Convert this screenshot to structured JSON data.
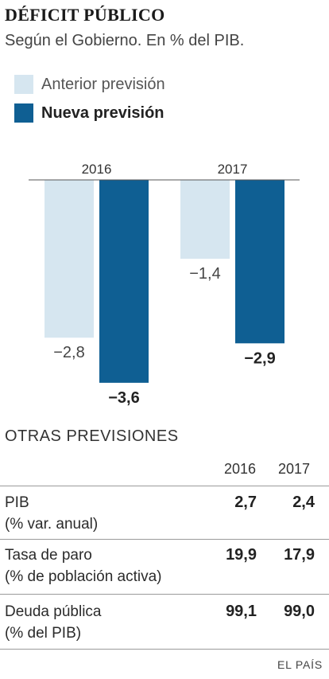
{
  "header": {
    "title": "DÉFICIT PÚBLICO",
    "subtitle": "Según el Gobierno. En % del PIB."
  },
  "legend": [
    {
      "label": "Anterior previsión",
      "color": "#d6e6f0"
    },
    {
      "label": "Nueva previsión",
      "color": "#0f5f93"
    }
  ],
  "chart_data": {
    "type": "bar",
    "categories": [
      "2016",
      "2017"
    ],
    "series": [
      {
        "name": "Anterior previsión",
        "values": [
          -2.8,
          -1.4
        ],
        "labels": [
          "−2,8",
          "−1,4"
        ],
        "color": "#d6e6f0"
      },
      {
        "name": "Nueva previsión",
        "values": [
          -3.6,
          -2.9
        ],
        "labels": [
          "−3,6",
          "−2,9"
        ],
        "color": "#0f5f93"
      }
    ],
    "ylim": [
      -3.6,
      0
    ],
    "grid": false,
    "legend_position": "top-left"
  },
  "table": {
    "title": "OTRAS PREVISIONES",
    "columns": [
      "2016",
      "2017"
    ],
    "rows": [
      {
        "label": "PIB",
        "sublabel": "(% var. anual)",
        "values": [
          "2,7",
          "2,4"
        ]
      },
      {
        "label": "Tasa de paro",
        "sublabel": "(% de población activa)",
        "values": [
          "19,9",
          "17,9"
        ]
      },
      {
        "label": "Deuda pública",
        "sublabel": "(% del PIB)",
        "values": [
          "99,1",
          "99,0"
        ]
      }
    ]
  },
  "source": "EL PAÍS"
}
